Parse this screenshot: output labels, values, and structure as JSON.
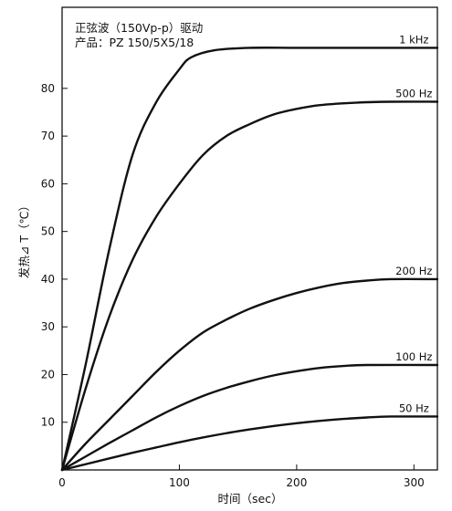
{
  "chart_data": {
    "type": "line",
    "title": "",
    "annotation_lines": [
      "正弦波（150Vp-p）驱动",
      "产品：PZ 150/5X5/18"
    ],
    "xlabel": "时间（sec）",
    "ylabel": "发热⊿ T（℃）",
    "xlim": [
      0,
      320
    ],
    "ylim": [
      0,
      97
    ],
    "x_ticks": [
      0,
      100,
      200,
      300
    ],
    "y_ticks": [
      10,
      20,
      30,
      40,
      50,
      60,
      70,
      80
    ],
    "grid": false,
    "legend": "none (series labelled at curve ends)",
    "series": [
      {
        "name": "1 kHz",
        "points": [
          [
            0,
            0
          ],
          [
            20,
            22
          ],
          [
            40,
            46
          ],
          [
            60,
            66
          ],
          [
            80,
            77
          ],
          [
            100,
            84
          ],
          [
            110,
            86.5
          ],
          [
            130,
            88
          ],
          [
            160,
            88.5
          ],
          [
            200,
            88.5
          ],
          [
            250,
            88.5
          ],
          [
            320,
            88.5
          ]
        ]
      },
      {
        "name": "500 Hz",
        "points": [
          [
            0,
            0
          ],
          [
            20,
            17
          ],
          [
            40,
            32
          ],
          [
            60,
            44
          ],
          [
            80,
            53
          ],
          [
            100,
            60
          ],
          [
            120,
            66
          ],
          [
            140,
            70
          ],
          [
            160,
            72.5
          ],
          [
            180,
            74.5
          ],
          [
            200,
            75.7
          ],
          [
            220,
            76.5
          ],
          [
            250,
            77
          ],
          [
            280,
            77.2
          ],
          [
            320,
            77.2
          ]
        ]
      },
      {
        "name": "200 Hz",
        "points": [
          [
            0,
            0
          ],
          [
            20,
            5.5
          ],
          [
            40,
            10.5
          ],
          [
            60,
            15.5
          ],
          [
            80,
            20.5
          ],
          [
            100,
            25
          ],
          [
            120,
            28.8
          ],
          [
            140,
            31.5
          ],
          [
            160,
            33.8
          ],
          [
            180,
            35.6
          ],
          [
            200,
            37.1
          ],
          [
            220,
            38.3
          ],
          [
            240,
            39.2
          ],
          [
            260,
            39.7
          ],
          [
            280,
            40
          ],
          [
            320,
            40
          ]
        ]
      },
      {
        "name": "100 Hz",
        "points": [
          [
            0,
            0
          ],
          [
            20,
            2.8
          ],
          [
            40,
            5.6
          ],
          [
            60,
            8.3
          ],
          [
            80,
            11
          ],
          [
            100,
            13.4
          ],
          [
            120,
            15.5
          ],
          [
            140,
            17.2
          ],
          [
            160,
            18.6
          ],
          [
            180,
            19.8
          ],
          [
            200,
            20.7
          ],
          [
            220,
            21.4
          ],
          [
            240,
            21.8
          ],
          [
            260,
            22
          ],
          [
            320,
            22
          ]
        ]
      },
      {
        "name": "50 Hz",
        "points": [
          [
            0,
            0
          ],
          [
            20,
            1.2
          ],
          [
            40,
            2.4
          ],
          [
            60,
            3.6
          ],
          [
            80,
            4.7
          ],
          [
            100,
            5.8
          ],
          [
            120,
            6.8
          ],
          [
            140,
            7.7
          ],
          [
            160,
            8.5
          ],
          [
            180,
            9.2
          ],
          [
            200,
            9.8
          ],
          [
            220,
            10.3
          ],
          [
            240,
            10.7
          ],
          [
            260,
            11
          ],
          [
            280,
            11.2
          ],
          [
            320,
            11.2
          ]
        ]
      }
    ]
  }
}
